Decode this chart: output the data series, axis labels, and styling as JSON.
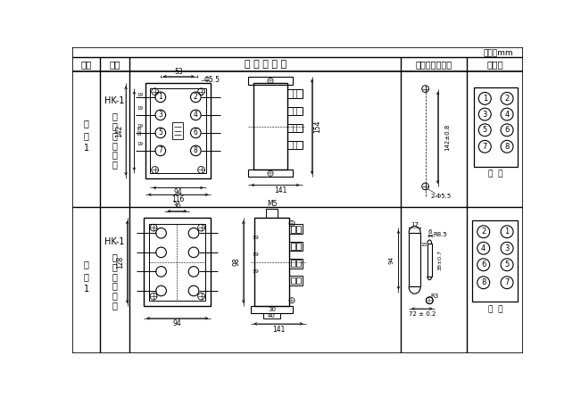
{
  "unit_label": "单位：mm",
  "header": [
    "图号",
    "结构",
    "外 形 尺 寸 图",
    "安装开孔尺廸图",
    "端子图"
  ],
  "row1_no": [
    "附",
    "图",
    "1"
  ],
  "row1_struct_title": "HK-1",
  "row1_struct_body": [
    "凸",
    "出",
    "式",
    "前",
    "接",
    "线"
  ],
  "row2_no": [
    "附",
    "图",
    "1"
  ],
  "row2_struct_title": "HK-1",
  "row2_struct_body": [
    "凸",
    "出",
    "式",
    "后",
    "接",
    "线"
  ],
  "front_label": "前  视",
  "back_label": "背  视",
  "bg_color": "#ffffff",
  "lc": "#000000"
}
